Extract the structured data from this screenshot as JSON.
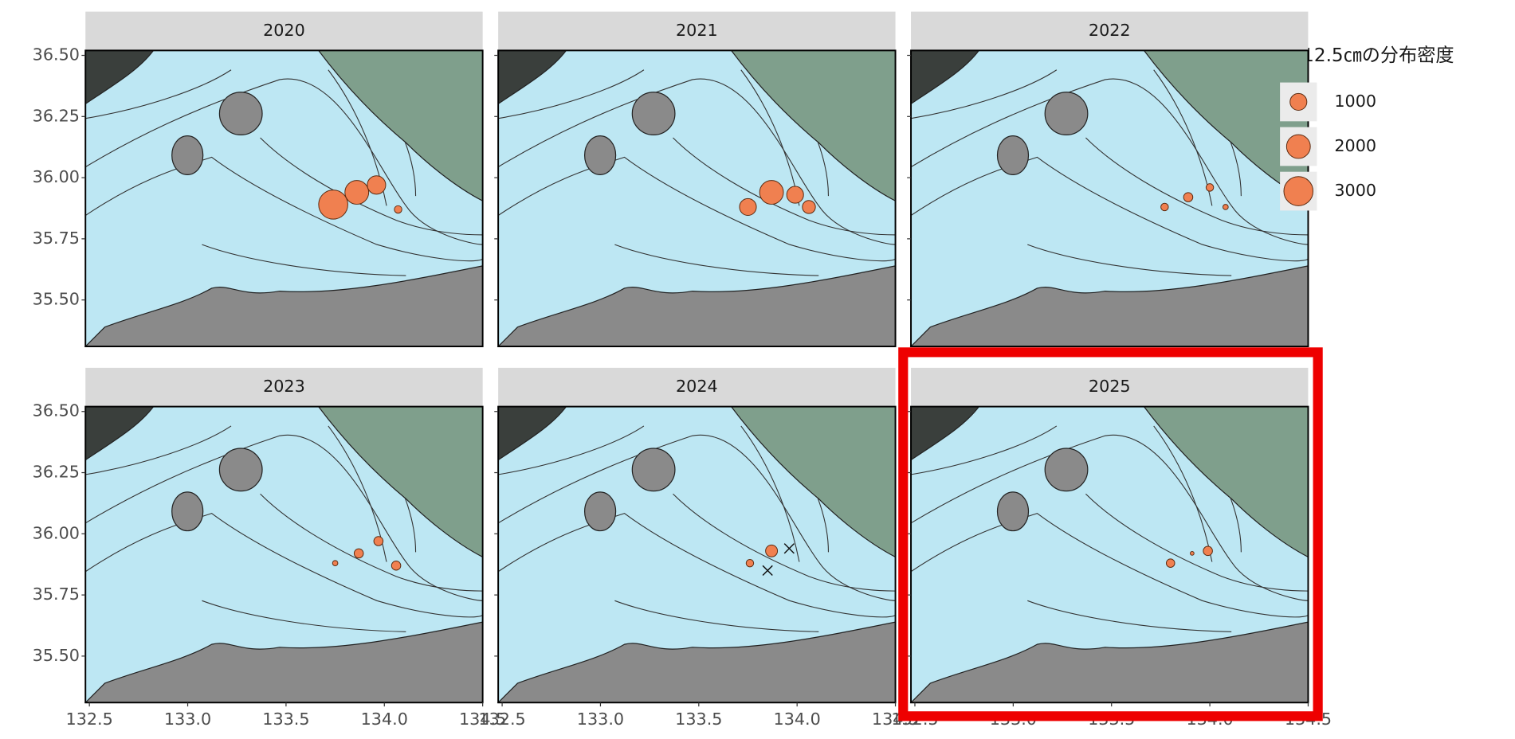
{
  "chart_data": {
    "type": "scatter",
    "legend_title": "＜12.5㎝の分布密度",
    "size_legend": [
      1000,
      2000,
      3000
    ],
    "color": "#f08050",
    "xlim": [
      132.48,
      134.5
    ],
    "ylim": [
      35.31,
      36.52
    ],
    "xticks": [
      132.5,
      {
        "value": 133,
        "label": "133.0"
      },
      133.5,
      {
        "value": 134,
        "label": "134.0"
      },
      134.5
    ],
    "yticks": [
      {
        "value": 35.5,
        "label": "35.50"
      },
      35.75,
      {
        "value": 36,
        "label": "36.00"
      },
      36.25,
      {
        "value": 36.5,
        "label": "36.50"
      }
    ],
    "panels": [
      {
        "title": "2020",
        "x": [
          133.74,
          133.86,
          133.96,
          134.07
        ],
        "y": [
          35.89,
          35.94,
          35.97,
          35.87
        ],
        "sizes": [
          3000,
          2000,
          1200,
          200
        ],
        "absent_x": [],
        "absent_y": []
      },
      {
        "title": "2021",
        "x": [
          133.75,
          133.87,
          133.99,
          134.06
        ],
        "y": [
          35.88,
          35.94,
          35.93,
          35.88
        ],
        "sizes": [
          1000,
          2000,
          1000,
          600
        ],
        "absent_x": [],
        "absent_y": []
      },
      {
        "title": "2022",
        "x": [
          133.77,
          133.89,
          134.0,
          134.08
        ],
        "y": [
          35.88,
          35.92,
          35.96,
          35.88
        ],
        "sizes": [
          200,
          300,
          200,
          100
        ],
        "absent_x": [],
        "absent_y": []
      },
      {
        "title": "2023",
        "x": [
          133.75,
          133.87,
          133.97,
          134.06
        ],
        "y": [
          35.88,
          35.92,
          35.97,
          35.87
        ],
        "sizes": [
          100,
          300,
          300,
          300
        ],
        "absent_x": [],
        "absent_y": []
      },
      {
        "title": "2024",
        "x": [
          133.76,
          133.87
        ],
        "y": [
          35.88,
          35.93
        ],
        "sizes": [
          200,
          500
        ],
        "absent_x": [
          133.85,
          133.96
        ],
        "absent_y": [
          35.85,
          35.94
        ]
      },
      {
        "title": "2025",
        "x": [
          133.8,
          133.91,
          133.99
        ],
        "y": [
          35.88,
          35.92,
          35.93
        ],
        "sizes": [
          250,
          50,
          300
        ],
        "absent_x": [],
        "absent_y": []
      }
    ]
  }
}
